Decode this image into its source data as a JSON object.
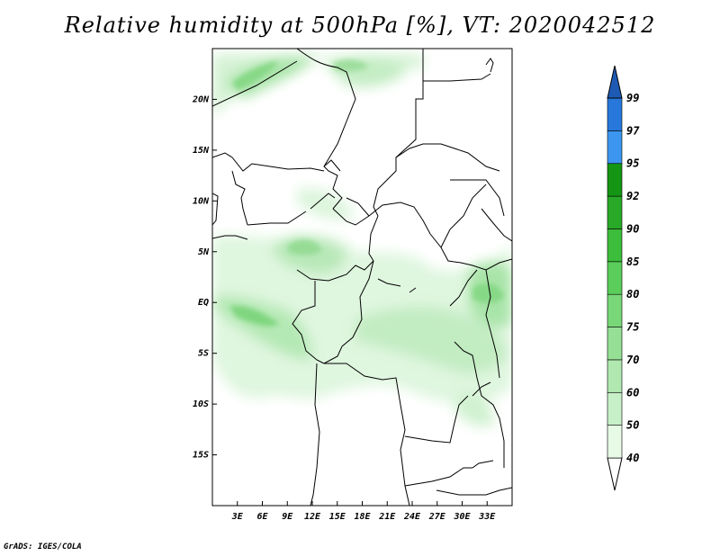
{
  "title": "Relative humidity at 500hPa [%], VT: 2020042512",
  "credit": "GrADS: IGES/COLA",
  "map": {
    "lon_range": [
      0,
      36
    ],
    "lat_range": [
      -20,
      25
    ],
    "lat_ticks": [
      {
        "lat": 20,
        "label": "20N"
      },
      {
        "lat": 15,
        "label": "15N"
      },
      {
        "lat": 10,
        "label": "10N"
      },
      {
        "lat": 5,
        "label": "5N"
      },
      {
        "lat": 0,
        "label": "EQ"
      },
      {
        "lat": -5,
        "label": "5S"
      },
      {
        "lat": -10,
        "label": "10S"
      },
      {
        "lat": -15,
        "label": "15S"
      }
    ],
    "lon_ticks": [
      {
        "lon": 3,
        "label": "3E"
      },
      {
        "lon": 6,
        "label": "6E"
      },
      {
        "lon": 9,
        "label": "9E"
      },
      {
        "lon": 12,
        "label": "12E"
      },
      {
        "lon": 15,
        "label": "15E"
      },
      {
        "lon": 18,
        "label": "18E"
      },
      {
        "lon": 21,
        "label": "21E"
      },
      {
        "lon": 24,
        "label": "24E"
      },
      {
        "lon": 27,
        "label": "27E"
      },
      {
        "lon": 30,
        "label": "30E"
      },
      {
        "lon": 33,
        "label": "33E"
      }
    ]
  },
  "colorbar": {
    "levels": [
      {
        "label": "40",
        "color": "#e6fae6"
      },
      {
        "label": "50",
        "color": "#c8f0c8"
      },
      {
        "label": "60",
        "color": "#b0e8b0"
      },
      {
        "label": "70",
        "color": "#96e096"
      },
      {
        "label": "75",
        "color": "#78d878"
      },
      {
        "label": "80",
        "color": "#5acd5a"
      },
      {
        "label": "85",
        "color": "#3cbe3c"
      },
      {
        "label": "90",
        "color": "#28aa28"
      },
      {
        "label": "92",
        "color": "#149614"
      },
      {
        "label": "95",
        "color": "#3c96f0"
      },
      {
        "label": "97",
        "color": "#2878dc"
      },
      {
        "label": "99",
        "color": "#1e5ab4"
      }
    ],
    "below_color": "#ffffff"
  }
}
